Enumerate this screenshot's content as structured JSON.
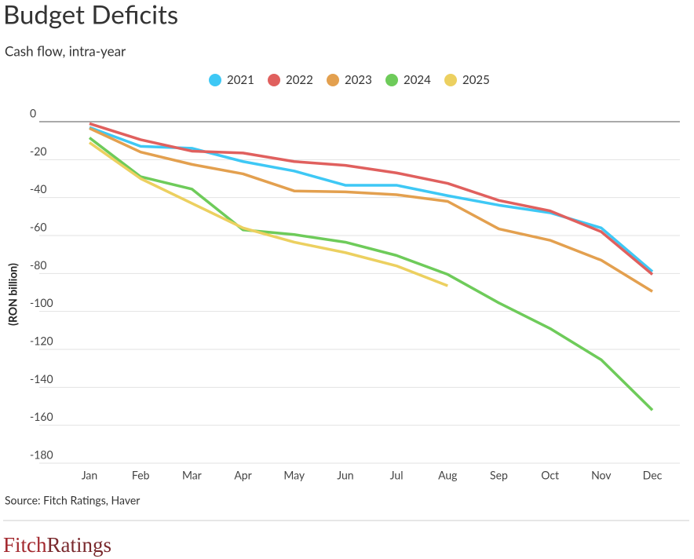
{
  "chart_data": {
    "type": "line",
    "title": "Budget Deficits",
    "subtitle": "Cash flow, intra-year",
    "y_label": "(RON billion)",
    "source": "Source: Fitch Ratings, Haver",
    "categories": [
      "Jan",
      "Feb",
      "Mar",
      "Apr",
      "May",
      "Jun",
      "Jul",
      "Aug",
      "Sep",
      "Oct",
      "Nov",
      "Dec"
    ],
    "series": [
      {
        "name": "2021",
        "color": "#3ec8f5",
        "values": [
          -3,
          -13,
          -14,
          -21,
          -26,
          -33.5,
          -33.5,
          -39,
          -44,
          -48,
          -56,
          -79
        ]
      },
      {
        "name": "2022",
        "color": "#e0605e",
        "values": [
          -1,
          -9.5,
          -15.5,
          -16.5,
          -21,
          -23,
          -27,
          -32.5,
          -41.5,
          -47,
          -58,
          -80.5
        ]
      },
      {
        "name": "2023",
        "color": "#e3a04f",
        "values": [
          -3.5,
          -16,
          -22.5,
          -27.5,
          -36.5,
          -37,
          -38.5,
          -42,
          -56.5,
          -62.5,
          -73,
          -89.5
        ]
      },
      {
        "name": "2024",
        "color": "#6ecb5a",
        "values": [
          -8.5,
          -29,
          -35.5,
          -57,
          -59.5,
          -63.5,
          -70.5,
          -80.5,
          -95.5,
          -109,
          -125.5,
          -152
        ]
      },
      {
        "name": "2025",
        "color": "#ecd060",
        "values": [
          -11,
          -30,
          -43,
          -56,
          -63.5,
          -69,
          -76,
          -86.5,
          null,
          null,
          null,
          null
        ]
      }
    ],
    "ylim": [
      -180,
      0
    ],
    "yticks": [
      0,
      -20,
      -40,
      -60,
      -80,
      -100,
      -120,
      -140,
      -160,
      -180
    ],
    "grid": true,
    "legend": "top"
  },
  "footer": {
    "logo": [
      "Fitch",
      "Ratings"
    ]
  }
}
